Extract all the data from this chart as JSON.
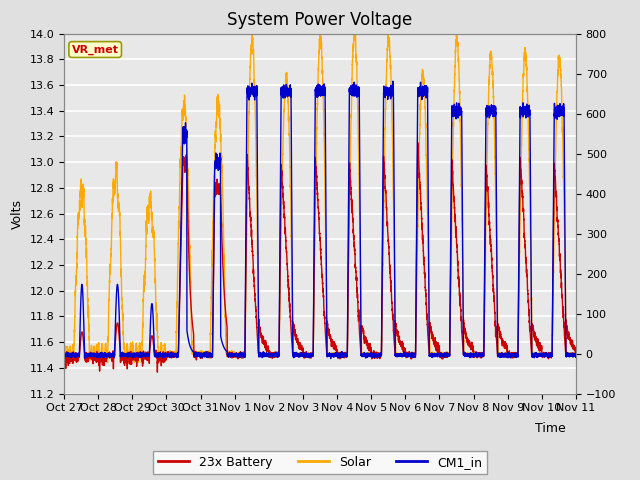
{
  "title": "System Power Voltage",
  "xlabel": "Time",
  "ylabel": "Volts",
  "left_ylim": [
    11.2,
    14.0
  ],
  "right_ylim": [
    -100,
    800
  ],
  "left_yticks": [
    11.2,
    11.4,
    11.6,
    11.8,
    12.0,
    12.2,
    12.4,
    12.6,
    12.8,
    13.0,
    13.2,
    13.4,
    13.6,
    13.8,
    14.0
  ],
  "right_yticks": [
    -100,
    0,
    100,
    200,
    300,
    400,
    500,
    600,
    700,
    800
  ],
  "background_color": "#e0e0e0",
  "plot_bg_color": "#e8e8e8",
  "grid_color": "white",
  "colors": {
    "battery": "#cc0000",
    "solar": "#ffaa00",
    "cm1": "#0000cc"
  },
  "legend_label_battery": "23x Battery",
  "legend_label_solar": "Solar",
  "legend_label_cm1": "CM1_in",
  "annotation_text": "VR_met",
  "annotation_color": "#cc0000",
  "annotation_bg": "#ffffcc",
  "annotation_border": "#999900",
  "title_fontsize": 12,
  "tick_fontsize": 8,
  "label_fontsize": 9,
  "legend_fontsize": 9,
  "figwidth": 6.4,
  "figheight": 4.8,
  "dpi": 100
}
